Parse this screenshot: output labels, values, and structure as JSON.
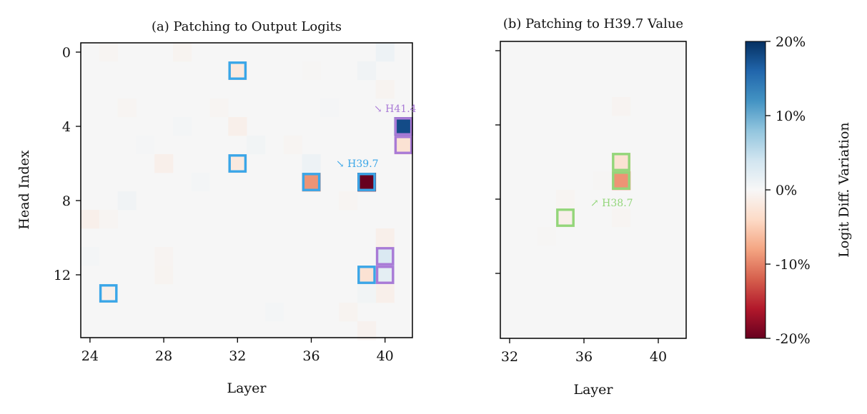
{
  "chart_data": [
    {
      "type": "heatmap",
      "title": "(a) Patching to Output Logits",
      "xlabel": "Layer",
      "ylabel": "Head Index",
      "x_range": [
        24,
        41
      ],
      "y_range": [
        0,
        15
      ],
      "x_ticks": [
        24,
        28,
        32,
        36,
        40
      ],
      "y_ticks": [
        0,
        4,
        8,
        12
      ],
      "background_value": 0,
      "cells": [
        {
          "layer": 41,
          "head": 4,
          "value": 18
        },
        {
          "layer": 41,
          "head": 5,
          "value": -3
        },
        {
          "layer": 39,
          "head": 7,
          "value": -20
        },
        {
          "layer": 36,
          "head": 7,
          "value": -9
        },
        {
          "layer": 36,
          "head": 6,
          "value": 1
        },
        {
          "layer": 32,
          "head": 1,
          "value": -2
        },
        {
          "layer": 32,
          "head": 6,
          "value": -2
        },
        {
          "layer": 32,
          "head": 4,
          "value": -1
        },
        {
          "layer": 39,
          "head": 12,
          "value": -3
        },
        {
          "layer": 40,
          "head": 11,
          "value": 3
        },
        {
          "layer": 40,
          "head": 12,
          "value": 2
        },
        {
          "layer": 25,
          "head": 13,
          "value": -1
        },
        {
          "layer": 28,
          "head": 6,
          "value": -1
        },
        {
          "layer": 24,
          "head": 9,
          "value": -1
        },
        {
          "layer": 26,
          "head": 8,
          "value": 0.7
        },
        {
          "layer": 40,
          "head": 0,
          "value": 1
        },
        {
          "layer": 39,
          "head": 1,
          "value": 0.7
        },
        {
          "layer": 40,
          "head": 2,
          "value": -0.5
        },
        {
          "layer": 29,
          "head": 0,
          "value": -0.5
        },
        {
          "layer": 33,
          "head": 5,
          "value": 0.5
        },
        {
          "layer": 40,
          "head": 10,
          "value": -1
        },
        {
          "layer": 40,
          "head": 13,
          "value": -1
        },
        {
          "layer": 39,
          "head": 13,
          "value": 0.5
        },
        {
          "layer": 38,
          "head": 14,
          "value": -0.5
        },
        {
          "layer": 39,
          "head": 15,
          "value": -0.7
        },
        {
          "layer": 28,
          "head": 12,
          "value": -0.5
        },
        {
          "layer": 28,
          "head": 11,
          "value": -0.4
        },
        {
          "layer": 29,
          "head": 4,
          "value": 0.3
        },
        {
          "layer": 31,
          "head": 3,
          "value": -0.3
        },
        {
          "layer": 30,
          "head": 7,
          "value": 0.3
        },
        {
          "layer": 34,
          "head": 14,
          "value": 0.3
        },
        {
          "layer": 26,
          "head": 3,
          "value": -0.3
        },
        {
          "layer": 25,
          "head": 9,
          "value": -0.3
        },
        {
          "layer": 35,
          "head": 5,
          "value": -0.3
        },
        {
          "layer": 38,
          "head": 8,
          "value": -0.3
        },
        {
          "layer": 24,
          "head": 11,
          "value": 0.3
        },
        {
          "layer": 25,
          "head": 0,
          "value": -0.3
        },
        {
          "layer": 37,
          "head": 3,
          "value": 0.2
        },
        {
          "layer": 27,
          "head": 5,
          "value": 0.2
        },
        {
          "layer": 36,
          "head": 1,
          "value": -0.2
        }
      ],
      "highlights": [
        {
          "layer": 32,
          "head": 1,
          "group": "blue"
        },
        {
          "layer": 32,
          "head": 6,
          "group": "blue"
        },
        {
          "layer": 36,
          "head": 7,
          "group": "blue"
        },
        {
          "layer": 39,
          "head": 7,
          "group": "blue"
        },
        {
          "layer": 39,
          "head": 12,
          "group": "blue"
        },
        {
          "layer": 25,
          "head": 13,
          "group": "blue"
        },
        {
          "layer": 41,
          "head": 4,
          "group": "purple"
        },
        {
          "layer": 41,
          "head": 5,
          "group": "purple"
        },
        {
          "layer": 40,
          "head": 11,
          "group": "purple"
        },
        {
          "layer": 40,
          "head": 12,
          "group": "purple"
        }
      ],
      "annotations": [
        {
          "text": "↘ H41.4",
          "color": "purple"
        },
        {
          "text": "↘ H39.7",
          "color": "blue"
        }
      ]
    },
    {
      "type": "heatmap",
      "title": "(b) Patching to H39.7 Value",
      "xlabel": "Layer",
      "ylabel": "",
      "x_range": [
        32,
        38
      ],
      "y_range": [
        0,
        15
      ],
      "x_ticks": [
        32,
        36,
        40
      ],
      "y_ticks": [
        0,
        4,
        8,
        12
      ],
      "background_value": 0,
      "cells": [
        {
          "layer": 38,
          "head": 6,
          "value": -3
        },
        {
          "layer": 38,
          "head": 7,
          "value": -9
        },
        {
          "layer": 35,
          "head": 9,
          "value": -1
        },
        {
          "layer": 38,
          "head": 3,
          "value": -0.4
        },
        {
          "layer": 35,
          "head": 8,
          "value": -0.3
        },
        {
          "layer": 37,
          "head": 7,
          "value": -0.2
        },
        {
          "layer": 34,
          "head": 10,
          "value": -0.2
        },
        {
          "layer": 38,
          "head": 9,
          "value": -0.3
        }
      ],
      "highlights": [
        {
          "layer": 38,
          "head": 6,
          "group": "green"
        },
        {
          "layer": 38,
          "head": 7,
          "group": "green"
        },
        {
          "layer": 35,
          "head": 9,
          "group": "green"
        }
      ],
      "annotations": [
        {
          "text": "↗ H38.7",
          "color": "green"
        }
      ]
    }
  ],
  "colorbar": {
    "label": "Logit Diff. Variation",
    "range": [
      -20,
      20
    ],
    "tick_labels": [
      "20%",
      "10%",
      "0%",
      "-10%",
      "-20%"
    ],
    "colormap": "RdBu"
  },
  "colors": {
    "blue": "#3aa6e8",
    "purple": "#a97ad6",
    "green": "#93d67a",
    "background": "#f6f6f6"
  }
}
